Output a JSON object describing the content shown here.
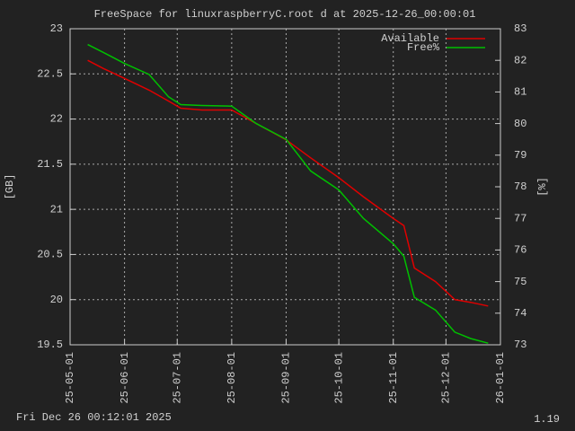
{
  "chart_data": {
    "type": "line",
    "title": "FreeSpace for linuxraspberryC.root d at 2025-12-26_00:00:01",
    "ylabel": "[GB]",
    "y2label": "[%]",
    "footer_left": "Fri Dec 26 00:12:01 2025",
    "footer_right": "1.19",
    "grid": true,
    "legend": "top-right",
    "xlim": [
      "25-05-01",
      "26-01-01"
    ],
    "xticks": [
      "25-05-01",
      "25-06-01",
      "25-07-01",
      "25-08-01",
      "25-09-01",
      "25-10-01",
      "25-11-01",
      "25-12-01",
      "26-01-01"
    ],
    "ylim": [
      19.5,
      23
    ],
    "yticks": [
      19.5,
      20,
      20.5,
      21,
      21.5,
      22,
      22.5,
      23
    ],
    "y2lim": [
      73,
      83
    ],
    "y2ticks": [
      73,
      74,
      75,
      76,
      77,
      78,
      79,
      80,
      81,
      82,
      83
    ],
    "x": [
      "25-05-11",
      "25-05-20",
      "25-06-01",
      "25-06-15",
      "25-06-26",
      "25-07-03",
      "25-07-15",
      "25-08-01",
      "25-08-15",
      "25-09-01",
      "25-09-15",
      "25-10-01",
      "25-10-15",
      "25-11-01",
      "25-11-07",
      "25-11-13",
      "25-11-25",
      "25-12-06",
      "25-12-15",
      "25-12-25"
    ],
    "series": [
      {
        "name": "Available",
        "color": "#e00000",
        "axis": "y",
        "values": [
          22.65,
          22.56,
          22.45,
          22.32,
          22.2,
          22.12,
          22.1,
          22.1,
          21.95,
          21.77,
          21.57,
          21.35,
          21.14,
          20.9,
          20.82,
          20.35,
          20.2,
          20.0,
          19.97,
          19.93
        ]
      },
      {
        "name": "Free%",
        "color": "#00c000",
        "axis": "y2",
        "values": [
          82.5,
          82.25,
          81.9,
          81.55,
          80.85,
          80.6,
          80.57,
          80.55,
          80.0,
          79.5,
          78.5,
          77.9,
          77.0,
          76.2,
          75.8,
          74.5,
          74.1,
          73.4,
          73.2,
          73.05
        ]
      }
    ]
  }
}
